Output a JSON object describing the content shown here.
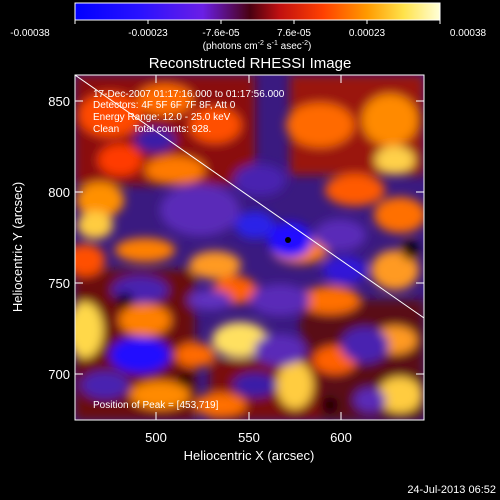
{
  "colorbar": {
    "tick_labels": [
      "-0.00038",
      "-0.00023",
      "-7.6e-05",
      "7.6e-05",
      "0.00023",
      "0.00038"
    ],
    "units_main": "(photons cm",
    "units_exp1": "-2",
    "units_mid": " s",
    "units_exp2": "-1",
    "units_end": " asec",
    "units_exp3": "-2",
    "units_close": ")"
  },
  "title": "Reconstructed RHESSI Image",
  "annotations": {
    "time_range": "17-Dec-2007 01:17:16.000 to 01:17:56.000",
    "detectors": "Detectors: 4F 5F 6F 7F 8F, Att 0",
    "energy_range": "Energy Range: 12.0 - 25.0 keV",
    "clean_counts": "Clean     Total counts: 928.",
    "peak_position": "Position of Peak = [453,719]"
  },
  "axes": {
    "xlabel": "Heliocentric X (arcsec)",
    "ylabel": "Heliocentric Y (arcsec)",
    "x_ticks": [
      "500",
      "550",
      "600"
    ],
    "y_ticks": [
      "700",
      "750",
      "800",
      "850"
    ],
    "x_range": [
      460,
      646
    ],
    "y_range": [
      659,
      869
    ]
  },
  "footer": {
    "timestamp": "24-Jul-2013 06:52"
  },
  "colors": {
    "background": "#000000",
    "text": "#ffffff",
    "limb_line": "#ffffff"
  }
}
